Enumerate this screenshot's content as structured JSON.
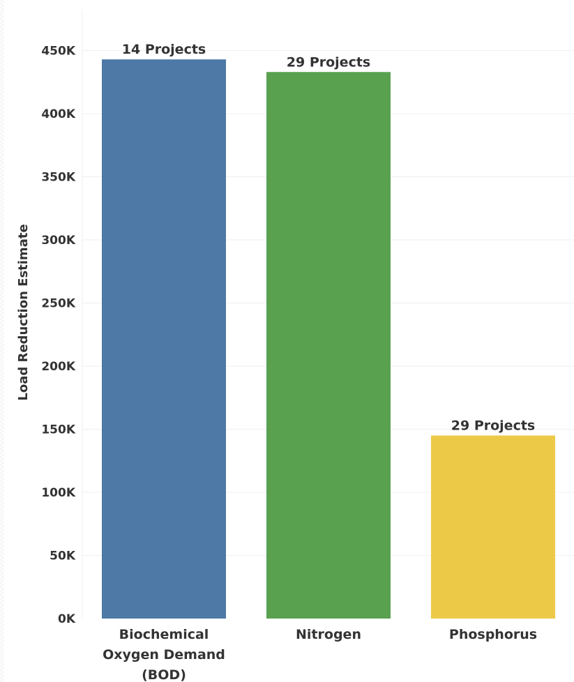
{
  "chart_data": {
    "type": "bar",
    "title": "",
    "xlabel": "",
    "ylabel": "Load Reduction Estimate",
    "ylim": [
      0,
      460000
    ],
    "y_ticks": [
      0,
      50000,
      100000,
      150000,
      200000,
      250000,
      300000,
      350000,
      400000,
      450000
    ],
    "y_tick_labels": [
      "0K",
      "50K",
      "100K",
      "150K",
      "200K",
      "250K",
      "300K",
      "350K",
      "400K",
      "450K"
    ],
    "grid": true,
    "categories": [
      [
        "Biochemical",
        "Oxygen Demand",
        "(BOD)"
      ],
      [
        "Nitrogen"
      ],
      [
        "Phosphorus"
      ]
    ],
    "values": [
      443000,
      433000,
      145000
    ],
    "data_labels": [
      "14 Projects",
      "29 Projects",
      "29 Projects"
    ],
    "colors": [
      "#4e79a7",
      "#59a14f",
      "#edc948"
    ]
  }
}
